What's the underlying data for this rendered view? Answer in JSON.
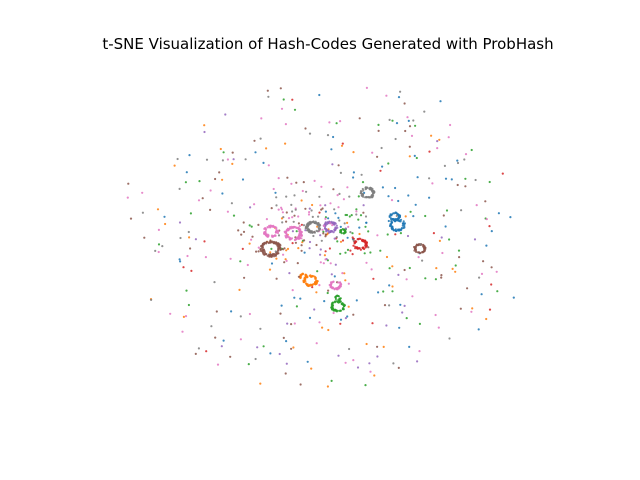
{
  "chart_data": {
    "type": "scatter",
    "title": "t-SNE Visualization of Hash-Codes Generated with ProbHash",
    "axes_visible": false,
    "grid": false,
    "legend": "none",
    "xlim": [
      -100,
      100
    ],
    "ylim": [
      -85,
      85
    ],
    "series": [
      {
        "color": "#1f77b4",
        "clusters": [
          {
            "x": 28,
            "y": 7,
            "r": 2.6,
            "n": 60
          },
          {
            "x": 27,
            "y": 11,
            "r": 1.8,
            "n": 40
          }
        ],
        "center": [
          27,
          14
        ],
        "scatter_n": 50
      },
      {
        "color": "#ff7f0e",
        "clusters": [
          {
            "x": -7,
            "y": -19,
            "r": 2.4,
            "n": 60
          },
          {
            "x": -10,
            "y": -17,
            "r": 1.2,
            "n": 25
          }
        ],
        "center": [
          -8,
          -5
        ],
        "scatter_n": 45
      },
      {
        "color": "#2ca02c",
        "clusters": [
          {
            "x": 4,
            "y": -31,
            "r": 2.4,
            "n": 60
          },
          {
            "x": 4,
            "y": -27,
            "r": 1.0,
            "n": 15
          },
          {
            "x": 6,
            "y": 4,
            "r": 1.0,
            "n": 30
          }
        ],
        "center": [
          10,
          3
        ],
        "scatter_n": 50
      },
      {
        "color": "#d62728",
        "clusters": [
          {
            "x": 13,
            "y": -2,
            "r": 2.4,
            "n": 60
          }
        ],
        "center": [
          10,
          -2
        ],
        "scatter_n": 20
      },
      {
        "color": "#9467bd",
        "clusters": [
          {
            "x": 1,
            "y": 6,
            "r": 2.4,
            "n": 60
          }
        ],
        "center": [
          0,
          5
        ],
        "scatter_n": 30
      },
      {
        "color": "#8c564b",
        "clusters": [
          {
            "x": 37,
            "y": -4,
            "r": 2.0,
            "n": 50
          },
          {
            "x": -23,
            "y": -4,
            "r": 3.5,
            "n": 110
          }
        ],
        "center": [
          -20,
          5
        ],
        "scatter_n": 60
      },
      {
        "color": "#e377c2",
        "clusters": [
          {
            "x": 3,
            "y": -21,
            "r": 2.0,
            "n": 50
          },
          {
            "x": -14,
            "y": 3,
            "r": 3.0,
            "n": 90
          },
          {
            "x": -23,
            "y": 4,
            "r": 2.5,
            "n": 60
          }
        ],
        "center": [
          -15,
          10
        ],
        "scatter_n": 70
      },
      {
        "color": "#7f7f7f",
        "clusters": [
          {
            "x": 16,
            "y": 22,
            "r": 2.4,
            "n": 60
          },
          {
            "x": -6,
            "y": 6,
            "r": 2.5,
            "n": 70
          }
        ],
        "center": [
          -5,
          10
        ],
        "scatter_n": 50
      }
    ]
  }
}
